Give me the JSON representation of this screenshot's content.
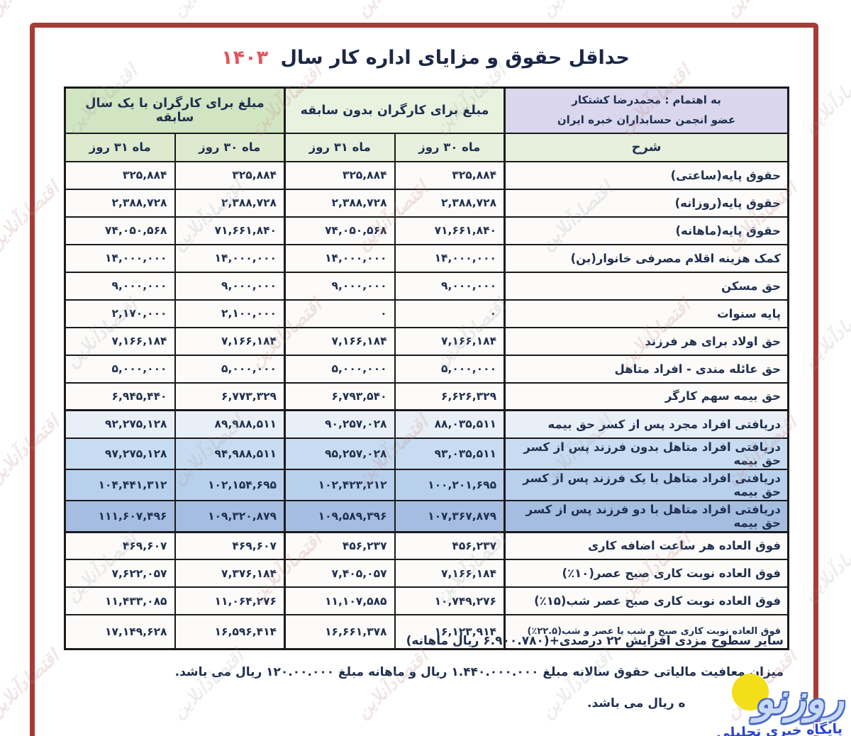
{
  "title": {
    "text": "حداقل حقوق و مزایای اداره کار سال",
    "year": "۱۴۰۳"
  },
  "table": {
    "credit_header": {
      "line1": "به اهتمام : محمدرضا کشتکار",
      "line2": "عضو انجمن حسابداران خبره ایران"
    },
    "group_headers": {
      "no_experience": "مبلغ برای کارگران بدون سابقه",
      "one_year": "مبلغ برای کارگران با یک سال سابقه"
    },
    "col_headers": {
      "desc": "شرح",
      "month30": "ماه ۳۰ روز",
      "month31": "ماه ۳۱ روز"
    },
    "rows": [
      {
        "label": "حقوق پایه(ساعتی)",
        "tint": "plain",
        "values": [
          "۳۲۵,۸۸۴",
          "۳۲۵,۸۸۴",
          "۳۲۵,۸۸۴",
          "۳۲۵,۸۸۴"
        ]
      },
      {
        "label": "حقوق پایه(روزانه)",
        "tint": "plain",
        "values": [
          "۲,۳۸۸,۷۲۸",
          "۲,۳۸۸,۷۲۸",
          "۲,۳۸۸,۷۲۸",
          "۲,۳۸۸,۷۲۸"
        ]
      },
      {
        "label": "حقوق پایه(ماهانه)",
        "tint": "plain",
        "values": [
          "۷۱,۶۶۱,۸۴۰",
          "۷۴,۰۵۰,۵۶۸",
          "۷۱,۶۶۱,۸۴۰",
          "۷۴,۰۵۰,۵۶۸"
        ]
      },
      {
        "label": "کمک هزینه اقلام مصرفی خانوار(بن)",
        "tint": "plain",
        "values": [
          "۱۴,۰۰۰,۰۰۰",
          "۱۴,۰۰۰,۰۰۰",
          "۱۴,۰۰۰,۰۰۰",
          "۱۴,۰۰۰,۰۰۰"
        ]
      },
      {
        "label": "حق مسکن",
        "tint": "plain",
        "values": [
          "۹,۰۰۰,۰۰۰",
          "۹,۰۰۰,۰۰۰",
          "۹,۰۰۰,۰۰۰",
          "۹,۰۰۰,۰۰۰"
        ]
      },
      {
        "label": "پایه سنوات",
        "tint": "plain",
        "values": [
          "۰",
          "۰",
          "۲,۱۰۰,۰۰۰",
          "۲,۱۷۰,۰۰۰"
        ]
      },
      {
        "label": "حق اولاد برای هر فرزند",
        "tint": "plain",
        "values": [
          "۷,۱۶۶,۱۸۴",
          "۷,۱۶۶,۱۸۴",
          "۷,۱۶۶,۱۸۴",
          "۷,۱۶۶,۱۸۴"
        ]
      },
      {
        "label": "حق عائله مندی - افراد متاهل",
        "tint": "plain",
        "values": [
          "۵,۰۰۰,۰۰۰",
          "۵,۰۰۰,۰۰۰",
          "۵,۰۰۰,۰۰۰",
          "۵,۰۰۰,۰۰۰"
        ]
      },
      {
        "label": "حق بیمه سهم کارگر",
        "tint": "plain",
        "values": [
          "۶,۶۲۶,۳۲۹",
          "۶,۷۹۳,۵۴۰",
          "۶,۷۷۳,۳۲۹",
          "۶,۹۴۵,۴۴۰"
        ]
      },
      {
        "label": "دریافتی افراد مجرد پس از کسر حق بیمه",
        "tint": "blue1",
        "values": [
          "۸۸,۰۳۵,۵۱۱",
          "۹۰,۲۵۷,۰۲۸",
          "۸۹,۹۸۸,۵۱۱",
          "۹۲,۲۷۵,۱۲۸"
        ]
      },
      {
        "label": "دریافتی افراد متاهل بدون فرزند پس از کسر حق بیمه",
        "tint": "blue2",
        "values": [
          "۹۳,۰۳۵,۵۱۱",
          "۹۵,۲۵۷,۰۲۸",
          "۹۴,۹۸۸,۵۱۱",
          "۹۷,۲۷۵,۱۲۸"
        ]
      },
      {
        "label": "دریافتی افراد متاهل با یک فرزند پس از کسر حق بیمه",
        "tint": "blue3",
        "values": [
          "۱۰۰,۲۰۱,۶۹۵",
          "۱۰۲,۴۲۳,۲۱۲",
          "۱۰۲,۱۵۴,۶۹۵",
          "۱۰۴,۴۴۱,۳۱۲"
        ]
      },
      {
        "label": "دریافتی افراد متاهل با دو فرزند پس از کسر حق بیمه",
        "tint": "blue4",
        "values": [
          "۱۰۷,۳۶۷,۸۷۹",
          "۱۰۹,۵۸۹,۳۹۶",
          "۱۰۹,۳۲۰,۸۷۹",
          "۱۱۱,۶۰۷,۴۹۶"
        ]
      },
      {
        "label": "فوق العاده هر ساعت اضافه کاری",
        "tint": "plain",
        "values": [
          "۴۵۶,۲۳۷",
          "۴۵۶,۲۳۷",
          "۴۶۹,۶۰۷",
          "۴۶۹,۶۰۷"
        ]
      },
      {
        "label": "فوق العاده نوبت کاری صبح عصر(۱۰٪)",
        "tint": "plain",
        "values": [
          "۷,۱۶۶,۱۸۴",
          "۷,۴۰۵,۰۵۷",
          "۷,۳۷۶,۱۸۴",
          "۷,۶۲۲,۰۵۷"
        ]
      },
      {
        "label": "فوق العاده نوبت کاری صبح عصر شب(۱۵٪)",
        "tint": "plain",
        "values": [
          "۱۰,۷۴۹,۲۷۶",
          "۱۱,۱۰۷,۵۸۵",
          "۱۱,۰۶۴,۲۷۶",
          "۱۱,۴۳۳,۰۸۵"
        ]
      },
      {
        "label": "فوق العاده نوبت کاری صبح و شب یا عصر و شب(۲۲.۵٪)",
        "tint": "plain",
        "small": true,
        "values": [
          "۱۶,۱۲۳,۹۱۴",
          "۱۶,۶۶۱,۳۷۸",
          "۱۶,۵۹۶,۴۱۴",
          "۱۷,۱۴۹,۶۲۸"
        ]
      }
    ]
  },
  "notes": {
    "line1": "سایر سطوح مزدی افزایش ۲۲ درصدی+(۶.۹۰۰.۷۸۰ ریال ماهانه)",
    "line2": "میزان معافیت مالیاتی حقوق سالانه مبلغ ۱.۴۴۰.۰۰۰.۰۰۰ ریال و ماهانه مبلغ ۱۲۰.۰۰.۰۰۰ ریال می باشد.",
    "line3_fragment": "ه ریال می باشد."
  },
  "logo": {
    "name": "روزنو",
    "tagline": "پایگاه خبری تحلیلی"
  },
  "watermark": {
    "text": "اقتصادآنلاین"
  }
}
